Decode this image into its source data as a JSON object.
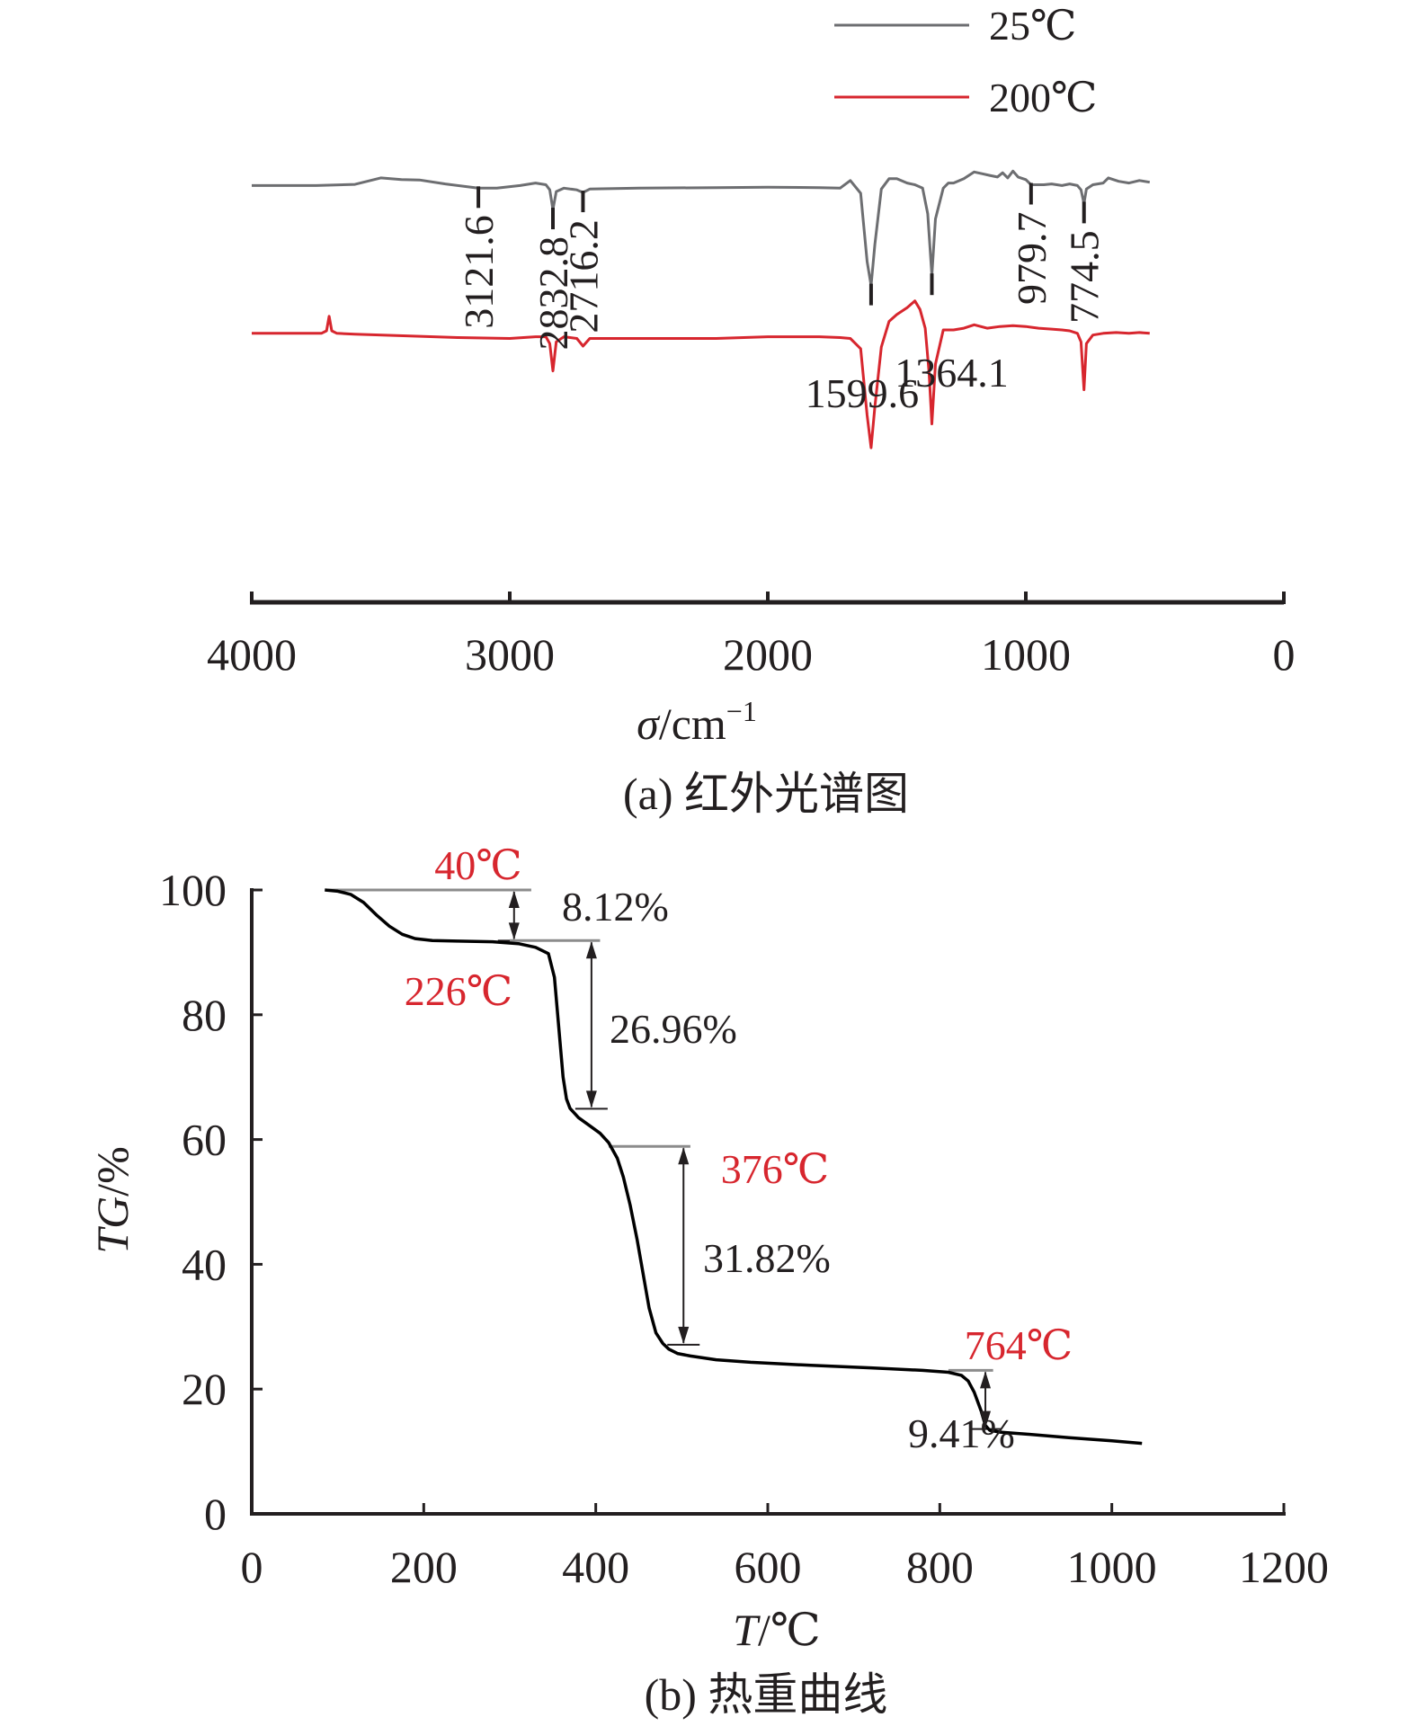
{
  "chart_data": [
    {
      "panel": "a",
      "type": "line",
      "caption": "(a) 红外光谱图",
      "xlabel": "σ/cm⁻¹",
      "xlabel_parts": {
        "symbol": "σ",
        "unit": "/cm",
        "exp": "−1"
      },
      "xlim": [
        4000,
        0
      ],
      "xticks": [
        4000,
        3000,
        2000,
        1000,
        0
      ],
      "xtick_labels": [
        "4000",
        "3000",
        "2000",
        "1000",
        "0"
      ],
      "yaxis_shown": false,
      "legend_position": "top-center",
      "series": [
        {
          "name": "25℃",
          "color": "#6d6e71",
          "offset": 1.0,
          "x": [
            4000,
            3750,
            3600,
            3500,
            3420,
            3350,
            3250,
            3150,
            3121.6,
            3050,
            2960,
            2900,
            2860,
            2845,
            2832.8,
            2820,
            2790,
            2740,
            2716.2,
            2690,
            2500,
            2200,
            2000,
            1800,
            1720,
            1680,
            1640,
            1615,
            1599.6,
            1585,
            1560,
            1530,
            1500,
            1460,
            1430,
            1400,
            1380,
            1364.1,
            1350,
            1320,
            1300,
            1280,
            1240,
            1200,
            1170,
            1140,
            1110,
            1090,
            1070,
            1050,
            1030,
            1000,
            979.7,
            960,
            930,
            900,
            860,
            830,
            800,
            786,
            774.5,
            765,
            740,
            700,
            680,
            640,
            600,
            560,
            520
          ],
          "y": [
            0.45,
            0.45,
            0.52,
            0.9,
            0.8,
            0.78,
            0.55,
            0.35,
            0.3,
            0.3,
            0.45,
            0.6,
            0.5,
            0.2,
            -0.95,
            0.1,
            0.3,
            0.2,
            0.05,
            0.25,
            0.3,
            0.33,
            0.35,
            0.33,
            0.3,
            0.75,
            0.0,
            -4.0,
            -5.4,
            -3.0,
            0.25,
            0.85,
            0.85,
            0.6,
            0.5,
            0.3,
            -1.2,
            -4.8,
            -1.5,
            0.3,
            0.6,
            0.6,
            0.85,
            1.25,
            1.15,
            1.05,
            0.95,
            1.2,
            0.9,
            1.3,
            0.95,
            0.8,
            0.5,
            0.5,
            0.5,
            0.55,
            0.45,
            0.55,
            0.45,
            0.2,
            -0.6,
            0.25,
            0.5,
            0.6,
            0.9,
            0.7,
            0.6,
            0.75,
            0.65
          ]
        },
        {
          "name": "200℃",
          "color": "#d7262e",
          "offset": -7.5,
          "x": [
            4000,
            3800,
            3730,
            3710,
            3700,
            3690,
            3670,
            3600,
            3400,
            3200,
            3000,
            2900,
            2860,
            2845,
            2832.8,
            2820,
            2790,
            2740,
            2716.2,
            2690,
            2500,
            2200,
            2000,
            1800,
            1720,
            1680,
            1640,
            1615,
            1599.6,
            1585,
            1560,
            1530,
            1500,
            1460,
            1430,
            1410,
            1390,
            1375,
            1364.1,
            1350,
            1320,
            1280,
            1240,
            1200,
            1150,
            1100,
            1050,
            1000,
            950,
            900,
            860,
            830,
            800,
            786,
            774.5,
            765,
            740,
            700,
            650,
            600,
            560,
            520
          ],
          "y": [
            0.3,
            0.3,
            0.3,
            0.45,
            1.3,
            0.45,
            0.3,
            0.25,
            0.15,
            0.05,
            0.0,
            0.1,
            0.1,
            -0.3,
            -1.9,
            -0.2,
            0.1,
            0.0,
            -0.45,
            0.0,
            0.0,
            0.0,
            0.1,
            0.1,
            0.05,
            0.0,
            -0.6,
            -4.5,
            -6.4,
            -4.0,
            -0.5,
            1.0,
            1.4,
            1.8,
            2.2,
            1.7,
            0.6,
            -2.0,
            -5.0,
            -1.5,
            0.5,
            0.5,
            0.6,
            0.8,
            0.6,
            0.7,
            0.75,
            0.7,
            0.6,
            0.55,
            0.5,
            0.45,
            0.3,
            -0.2,
            -3.0,
            -0.3,
            0.2,
            0.3,
            0.35,
            0.3,
            0.35,
            0.3
          ]
        }
      ],
      "peak_annotations": [
        {
          "label": "3121.6",
          "x": 3121.6
        },
        {
          "label": "2832.8",
          "x": 2832.8
        },
        {
          "label": "2716.2",
          "x": 2716.2
        },
        {
          "label": "1599.6",
          "x": 1599.6
        },
        {
          "label": "1364.1",
          "x": 1364.1
        },
        {
          "label": "979.7",
          "x": 979.7
        },
        {
          "label": "774.5",
          "x": 774.5
        }
      ]
    },
    {
      "panel": "b",
      "type": "line",
      "caption": "(b) 热重曲线",
      "xlabel": "T/℃",
      "xlabel_parts": {
        "symbol": "T",
        "unit": "/℃"
      },
      "ylabel": "TG/%",
      "ylabel_parts": {
        "symbol": "TG",
        "unit": "/%"
      },
      "xlim": [
        0,
        1200
      ],
      "ylim": [
        0,
        100
      ],
      "xticks": [
        0,
        200,
        400,
        600,
        800,
        1000,
        1200
      ],
      "xtick_labels": [
        "0",
        "200",
        "400",
        "600",
        "800",
        "1000",
        "1200"
      ],
      "yticks": [
        0,
        20,
        40,
        60,
        80,
        100
      ],
      "ytick_labels": [
        "0",
        "20",
        "40",
        "60",
        "80",
        "100"
      ],
      "series": [
        {
          "name": "",
          "color": "#000000",
          "x": [
            85,
            100,
            115,
            130,
            145,
            160,
            175,
            190,
            210,
            240,
            280,
            310,
            330,
            345,
            352,
            357,
            362,
            366,
            370,
            374,
            380,
            395,
            405,
            415,
            425,
            432,
            440,
            448,
            455,
            462,
            470,
            478,
            485,
            495,
            510,
            540,
            580,
            650,
            720,
            780,
            810,
            825,
            833,
            840,
            848,
            853,
            858,
            870,
            900,
            950,
            1000,
            1035
          ],
          "y": [
            100,
            99.8,
            99.3,
            98.0,
            96.0,
            94.2,
            92.9,
            92.2,
            91.9,
            91.8,
            91.7,
            91.4,
            90.8,
            89.8,
            86.0,
            78.0,
            70.0,
            66.5,
            65.0,
            64.4,
            63.5,
            62.0,
            61.0,
            59.5,
            57.0,
            54.0,
            49.5,
            44.0,
            38.5,
            33.0,
            29.0,
            27.3,
            26.4,
            25.7,
            25.3,
            24.7,
            24.3,
            23.8,
            23.4,
            23.0,
            22.7,
            22.2,
            21.3,
            19.5,
            16.5,
            14.2,
            13.4,
            13.1,
            12.8,
            12.2,
            11.7,
            11.3
          ]
        }
      ],
      "step_annotations": [
        {
          "temp_label": "40℃",
          "loss_label": "8.12%",
          "x_arrow": 305,
          "y_top": 100,
          "y_bottom": 91.88,
          "ref_x": [
            85,
            325
          ]
        },
        {
          "temp_label": "226℃",
          "loss_label": "26.96%",
          "x_arrow": 395,
          "y_top": 91.9,
          "y_bottom": 64.94,
          "ref_x": [
            300,
            405
          ]
        },
        {
          "temp_label": "376℃",
          "loss_label": "31.82%",
          "x_arrow": 502,
          "y_top": 58.9,
          "y_bottom": 27.1,
          "ref_x": [
            415,
            510
          ]
        },
        {
          "temp_label": "764℃",
          "loss_label": "9.41%",
          "x_arrow": 853,
          "y_top": 23.0,
          "y_bottom": 13.6,
          "ref_x": [
            810,
            862
          ]
        }
      ]
    }
  ]
}
